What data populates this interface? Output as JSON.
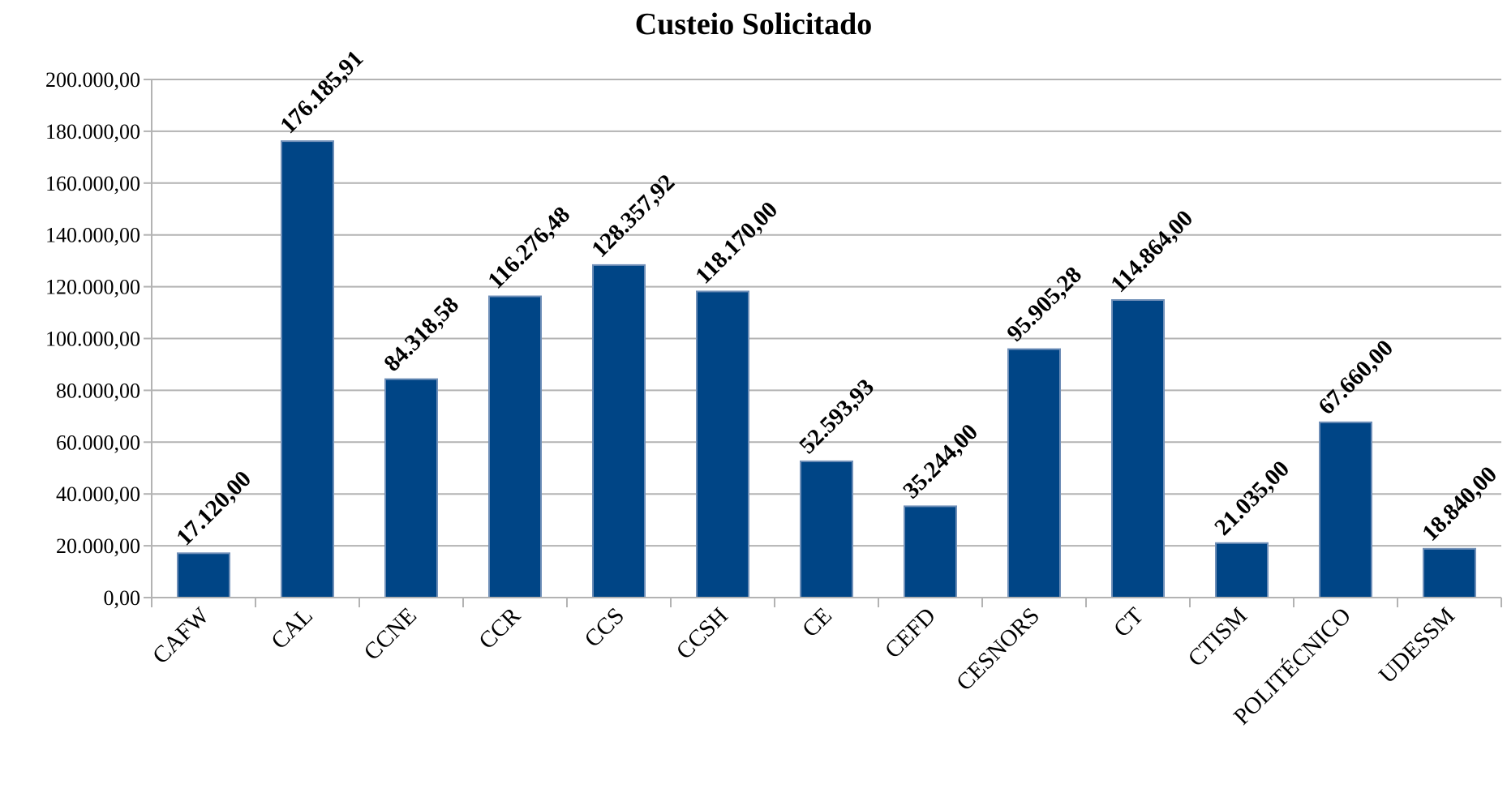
{
  "chart_data": {
    "type": "bar",
    "title": "Custeio Solicitado",
    "categories": [
      "CAFW",
      "CAL",
      "CCNE",
      "CCR",
      "CCS",
      "CCSH",
      "CE",
      "CEFD",
      "CESNORS",
      "CT",
      "CTISM",
      "POLITÉCNICO",
      "UDESSM"
    ],
    "values": [
      17120,
      176185.91,
      84318.58,
      116276.48,
      128357.92,
      118170,
      52593.93,
      35244,
      95905.28,
      114864,
      21035,
      67660,
      18840
    ],
    "value_labels": [
      "17.120,00",
      "176.185,91",
      "84.318,58",
      "116.276,48",
      "128.357,92",
      "118.170,00",
      "52.593,93",
      "35.244,00",
      "95.905,28",
      "114.864,00",
      "21.035,00",
      "67.660,00",
      "18.840,00"
    ],
    "color": "#004586",
    "ylim": [
      0,
      200000
    ],
    "yticks": [
      {
        "value": 0,
        "label": "0,00"
      },
      {
        "value": 20000,
        "label": "20.000,00"
      },
      {
        "value": 40000,
        "label": "40.000,00"
      },
      {
        "value": 60000,
        "label": "60.000,00"
      },
      {
        "value": 80000,
        "label": "80.000,00"
      },
      {
        "value": 100000,
        "label": "100.000,00"
      },
      {
        "value": 120000,
        "label": "120.000,00"
      },
      {
        "value": 140000,
        "label": "140.000,00"
      },
      {
        "value": 160000,
        "label": "160.000,00"
      },
      {
        "value": 180000,
        "label": "180.000,00"
      },
      {
        "value": 200000,
        "label": "200.000,00"
      }
    ],
    "grid": true
  }
}
